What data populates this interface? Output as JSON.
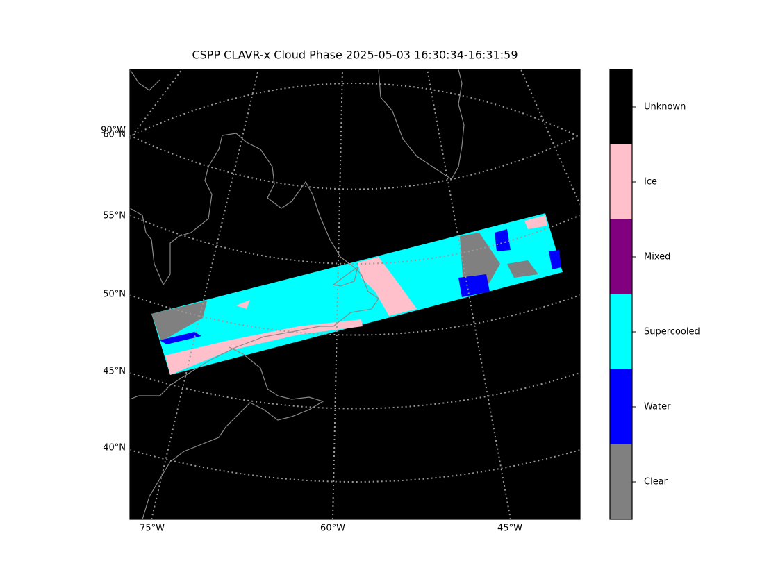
{
  "title": "CSPP CLAVR-x Cloud Phase 2025-05-03 16:30:34-16:31:59",
  "map": {
    "left_labels": [
      "90°W",
      "60°N",
      "55°N",
      "50°N",
      "45°N",
      "40°N"
    ],
    "bottom_labels": [
      "75°W",
      "60°W",
      "45°W"
    ],
    "background": "#000000"
  },
  "colorbar": [
    {
      "label": "Unknown",
      "color": "#000000"
    },
    {
      "label": "Ice",
      "color": "#ffc0cb"
    },
    {
      "label": "Mixed",
      "color": "#800080"
    },
    {
      "label": "Supercooled",
      "color": "#00ffff"
    },
    {
      "label": "Water",
      "color": "#0000ff"
    },
    {
      "label": "Clear",
      "color": "#808080"
    }
  ]
}
